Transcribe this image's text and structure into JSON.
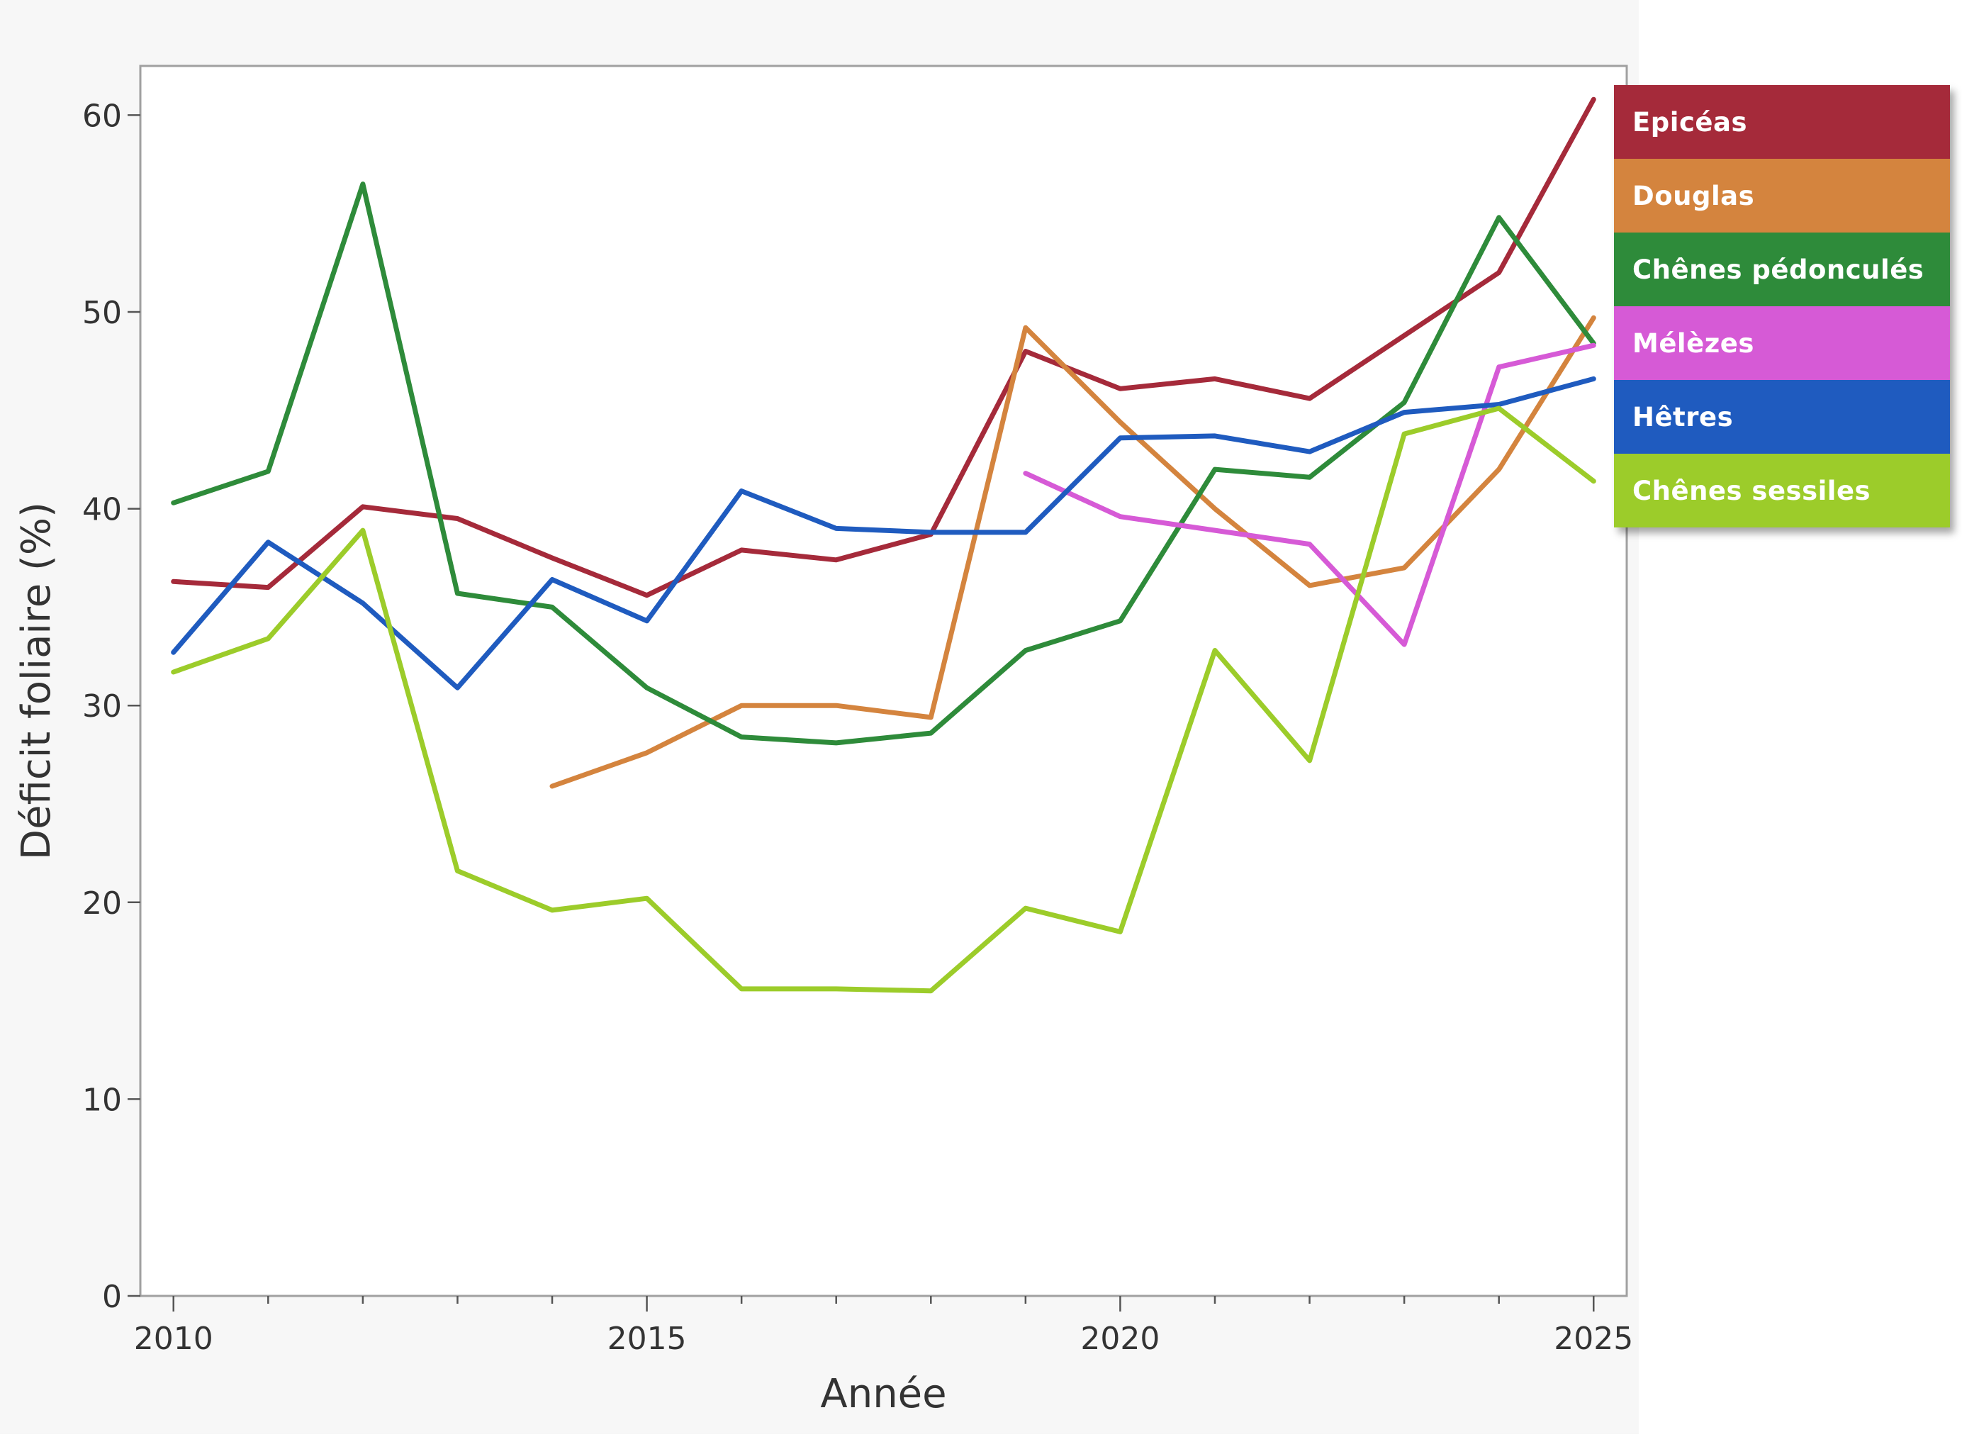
{
  "chart_data": {
    "type": "line",
    "xlabel": "Année",
    "ylabel": "Déficit foliaire (%)",
    "xlim": [
      2009.65,
      2025.35
    ],
    "ylim": [
      0,
      62.5
    ],
    "x_ticks": [
      2010,
      2015,
      2020,
      2025
    ],
    "y_ticks": [
      0,
      10,
      20,
      30,
      40,
      50,
      60
    ],
    "grid": false,
    "legend_position": "right",
    "series": [
      {
        "name": "Epicéas",
        "color": "#a52a3a",
        "points": [
          [
            2010,
            36.3
          ],
          [
            2011,
            36.0
          ],
          [
            2012,
            40.1
          ],
          [
            2013,
            39.5
          ],
          [
            2014,
            37.5
          ],
          [
            2015,
            35.6
          ],
          [
            2016,
            37.9
          ],
          [
            2017,
            37.4
          ],
          [
            2018,
            38.7
          ],
          [
            2019,
            48.0
          ],
          [
            2020,
            46.1
          ],
          [
            2021,
            46.6
          ],
          [
            2022,
            45.6
          ],
          [
            2023,
            48.8
          ],
          [
            2024,
            52.0
          ],
          [
            2025,
            60.8
          ]
        ]
      },
      {
        "name": "Douglas",
        "color": "#d4843e",
        "points": [
          [
            2014,
            25.9
          ],
          [
            2015,
            27.6
          ],
          [
            2016,
            30.0
          ],
          [
            2017,
            30.0
          ],
          [
            2018,
            29.4
          ],
          [
            2019,
            49.2
          ],
          [
            2020,
            44.4
          ],
          [
            2021,
            40.0
          ],
          [
            2022,
            36.1
          ],
          [
            2023,
            37.0
          ],
          [
            2024,
            42.0
          ],
          [
            2025,
            49.7
          ]
        ]
      },
      {
        "name": "Chênes pédonculés",
        "color": "#2e8b3a",
        "points": [
          [
            2010,
            40.3
          ],
          [
            2011,
            41.9
          ],
          [
            2012,
            56.5
          ],
          [
            2013,
            35.7
          ],
          [
            2014,
            35.0
          ],
          [
            2015,
            30.9
          ],
          [
            2016,
            28.4
          ],
          [
            2017,
            28.1
          ],
          [
            2018,
            28.6
          ],
          [
            2019,
            32.8
          ],
          [
            2020,
            34.3
          ],
          [
            2021,
            42.0
          ],
          [
            2022,
            41.6
          ],
          [
            2023,
            45.4
          ],
          [
            2024,
            54.8
          ],
          [
            2025,
            48.4
          ]
        ]
      },
      {
        "name": "Mélèzes",
        "color": "#d65ad6",
        "points": [
          [
            2019,
            41.8
          ],
          [
            2020,
            39.6
          ],
          [
            2021,
            38.9
          ],
          [
            2022,
            38.2
          ],
          [
            2023,
            33.1
          ],
          [
            2024,
            47.2
          ],
          [
            2025,
            48.3
          ]
        ]
      },
      {
        "name": "Hêtres",
        "color": "#1f5bbf",
        "points": [
          [
            2010,
            32.7
          ],
          [
            2011,
            38.3
          ],
          [
            2012,
            35.2
          ],
          [
            2013,
            30.9
          ],
          [
            2014,
            36.4
          ],
          [
            2015,
            34.3
          ],
          [
            2016,
            40.9
          ],
          [
            2017,
            39.0
          ],
          [
            2018,
            38.8
          ],
          [
            2019,
            38.8
          ],
          [
            2020,
            43.6
          ],
          [
            2021,
            43.7
          ],
          [
            2022,
            42.9
          ],
          [
            2023,
            44.9
          ],
          [
            2024,
            45.3
          ],
          [
            2025,
            46.6
          ]
        ]
      },
      {
        "name": "Chênes sessiles",
        "color": "#9ccc2a",
        "points": [
          [
            2010,
            31.7
          ],
          [
            2011,
            33.4
          ],
          [
            2012,
            38.9
          ],
          [
            2013,
            21.6
          ],
          [
            2014,
            19.6
          ],
          [
            2015,
            20.2
          ],
          [
            2016,
            15.6
          ],
          [
            2017,
            15.6
          ],
          [
            2018,
            15.5
          ],
          [
            2019,
            19.7
          ],
          [
            2020,
            18.5
          ],
          [
            2021,
            32.8
          ],
          [
            2022,
            27.2
          ],
          [
            2023,
            43.8
          ],
          [
            2024,
            45.1
          ],
          [
            2025,
            41.4
          ]
        ]
      }
    ]
  },
  "legend": {
    "items": [
      {
        "label": "Epicéas",
        "color": "#a52a3a"
      },
      {
        "label": "Douglas",
        "color": "#d4843e"
      },
      {
        "label": "Chênes pédonculés",
        "color": "#2e8b3a"
      },
      {
        "label": "Mélèzes",
        "color": "#d65ad6"
      },
      {
        "label": "Hêtres",
        "color": "#1f5bbf"
      },
      {
        "label": "Chênes sessiles",
        "color": "#9ccc2a"
      }
    ]
  },
  "colors": {
    "plot_background": "#ffffff",
    "outer_background": "#f7f7f7",
    "axis": "#a0a0a0",
    "tick_label": "#333333"
  }
}
